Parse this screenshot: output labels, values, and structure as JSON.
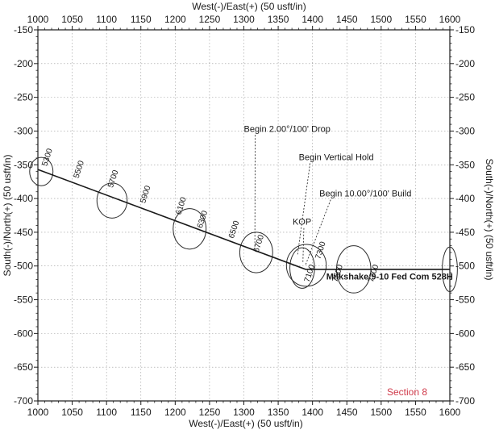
{
  "chart_data": {
    "type": "scatter",
    "xlabel": "West(-)/East(+) (50 usft/in)",
    "ylabel": "South(-)/North(+) (50 usft/in)",
    "xlim": [
      1000,
      1600
    ],
    "ylim": [
      -700,
      -150
    ],
    "x_ticks": [
      1000,
      1050,
      1100,
      1150,
      1200,
      1250,
      1300,
      1350,
      1400,
      1450,
      1500,
      1550,
      1600
    ],
    "y_ticks": [
      -150,
      -200,
      -250,
      -300,
      -350,
      -400,
      -450,
      -500,
      -550,
      -600,
      -650,
      -700
    ],
    "grid": true,
    "series": [
      {
        "x": [
          1000,
          1390,
          1600
        ],
        "y": [
          -357,
          -505,
          -505
        ]
      }
    ],
    "uncertainty_ellipses": [
      {
        "x": 1005,
        "y": -360,
        "rx": 17,
        "ry": 21
      },
      {
        "x": 1108,
        "y": -403,
        "rx": 22,
        "ry": 26
      },
      {
        "x": 1221,
        "y": -445,
        "rx": 24,
        "ry": 30
      },
      {
        "x": 1318,
        "y": -480,
        "rx": 24,
        "ry": 30
      },
      {
        "x": 1385,
        "y": -503,
        "rx": 18,
        "ry": 30
      },
      {
        "x": 1391,
        "y": -499,
        "rx": 29,
        "ry": 31
      },
      {
        "x": 1460,
        "y": -505,
        "rx": 25,
        "ry": 35
      },
      {
        "x": 1600,
        "y": -505,
        "rx": 11,
        "ry": 33
      }
    ],
    "md_labels": [
      {
        "text": "5300",
        "x": 1017,
        "y": -340
      },
      {
        "text": "5500",
        "x": 1063,
        "y": -358
      },
      {
        "text": "5700",
        "x": 1113,
        "y": -372
      },
      {
        "text": "5900",
        "x": 1160,
        "y": -395
      },
      {
        "text": "6100",
        "x": 1212,
        "y": -412
      },
      {
        "text": "6300",
        "x": 1243,
        "y": -432
      },
      {
        "text": "6500",
        "x": 1289,
        "y": -447
      },
      {
        "text": "6700",
        "x": 1325,
        "y": -468
      },
      {
        "text": "7100",
        "x": 1399,
        "y": -512
      },
      {
        "text": "7300",
        "x": 1415,
        "y": -478
      },
      {
        "text": "7500",
        "x": 1440,
        "y": -512
      },
      {
        "text": "7700",
        "x": 1492,
        "y": -512
      }
    ],
    "annotations": [
      {
        "text": "Begin 2.00°/100' Drop",
        "text_x": 1300,
        "text_y": -301,
        "point_x": 1316,
        "point_y": -478
      },
      {
        "text": "Begin Vertical Hold",
        "text_x": 1380,
        "text_y": -343,
        "point_x": 1378,
        "point_y": -485
      },
      {
        "text": "Begin 10.00°/100' Build",
        "text_x": 1410,
        "text_y": -397,
        "point_x": 1390,
        "point_y": -498
      },
      {
        "text": "KOP",
        "text_x": 1371,
        "text_y": -439,
        "point_x": 1386,
        "point_y": -495
      }
    ],
    "well_label": {
      "text": "Milkshake 9-10 Fed Com 528H",
      "x": 1420,
      "y": -520
    },
    "section_label": "Section 8"
  }
}
